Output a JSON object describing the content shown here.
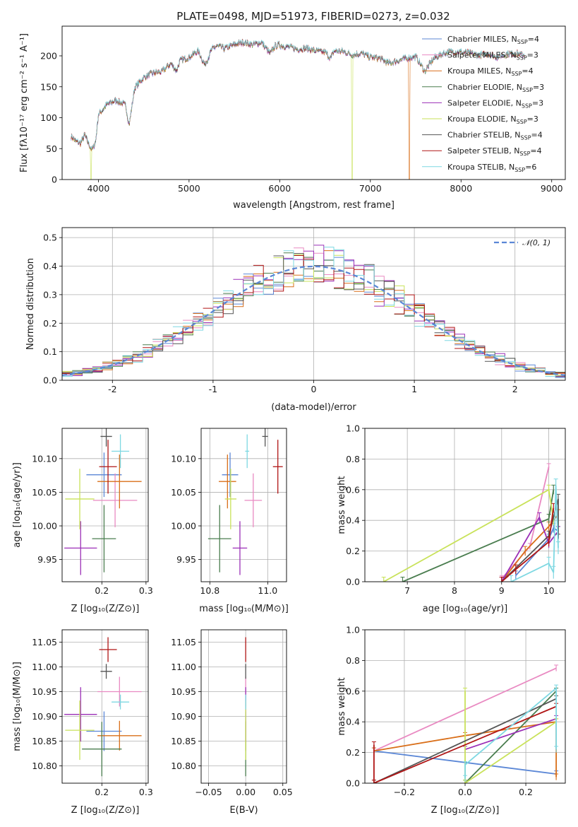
{
  "figure": {
    "title": "PLATE=0498, MJD=51973, FIBERID=0273, z=0.032"
  },
  "colors": {
    "chabrier_miles": "#5b87d6",
    "salpeter_miles": "#e98ac2",
    "kroupa_miles": "#d96f1a",
    "chabrier_elodie": "#4a7d4f",
    "salpeter_elodie": "#9b2fb7",
    "kroupa_elodie": "#c9e25a",
    "chabrier_stelib": "#555555",
    "salpeter_stelib": "#b01515",
    "kroupa_stelib": "#7ed8e2",
    "normal": "#5b87d6"
  },
  "chart_data": [
    {
      "id": "spectrum",
      "type": "line",
      "xlabel": "wavelength [Angstrom, rest frame]",
      "ylabel": "Flux [f_λ10^-17 erg cm^-2 s^-1 A^-1]",
      "xlim": [
        3600,
        9150
      ],
      "ylim": [
        0,
        248
      ],
      "xticks": [
        4000,
        5000,
        6000,
        7000,
        8000,
        9000
      ],
      "yticks": [
        0,
        50,
        100,
        150,
        200
      ],
      "grid": false,
      "legend": "top-right",
      "curve": {
        "x": [
          3700,
          3750,
          3800,
          3850,
          3900,
          3930,
          3970,
          4000,
          4100,
          4200,
          4300,
          4340,
          4400,
          4500,
          4600,
          4700,
          4800,
          4861,
          4900,
          5000,
          5100,
          5175,
          5250,
          5300,
          5400,
          5500,
          5600,
          5700,
          5800,
          5893,
          5950,
          6000,
          6100,
          6200,
          6300,
          6400,
          6500,
          6563,
          6600,
          6700,
          6800,
          6900,
          7000,
          7100,
          7200,
          7300,
          7400,
          7500,
          7600,
          7700,
          7800,
          7900,
          8000,
          8100,
          8200,
          8300,
          8400,
          8500,
          8600,
          8700
        ],
        "y": [
          70,
          62,
          58,
          72,
          55,
          48,
          62,
          105,
          122,
          128,
          120,
          88,
          148,
          165,
          172,
          174,
          188,
          176,
          192,
          198,
          208,
          185,
          210,
          216,
          212,
          218,
          222,
          218,
          222,
          203,
          216,
          218,
          214,
          211,
          212,
          208,
          206,
          196,
          208,
          207,
          202,
          204,
          198,
          196,
          188,
          192,
          196,
          199,
          175,
          196,
          204,
          207,
          206,
          204,
          201,
          203,
          198,
          203,
          204,
          201
        ]
      },
      "series": [
        {
          "name": "Chabrier MILES, N_SSP=4",
          "color_key": "chabrier_miles"
        },
        {
          "name": "Salpeter MILES, N_SSP=3",
          "color_key": "salpeter_miles"
        },
        {
          "name": "Kroupa MILES, N_SSP=4",
          "color_key": "kroupa_miles",
          "dropout_at": 7430
        },
        {
          "name": "Chabrier ELODIE, N_SSP=3",
          "color_key": "chabrier_elodie"
        },
        {
          "name": "Salpeter ELODIE, N_SSP=3",
          "color_key": "salpeter_elodie"
        },
        {
          "name": "Kroupa ELODIE, N_SSP=3",
          "color_key": "kroupa_elodie",
          "dropout_at": 6800,
          "dropout_at_2": 3920
        },
        {
          "name": "Chabrier STELIB, N_SSP=4",
          "color_key": "chabrier_stelib"
        },
        {
          "name": "Salpeter STELIB, N_SSP=4",
          "color_key": "salpeter_stelib"
        },
        {
          "name": "Kroupa STELIB, N_SSP=6",
          "color_key": "kroupa_stelib"
        }
      ]
    },
    {
      "id": "residuals",
      "type": "step",
      "xlabel": "(data-model)/error",
      "ylabel": "Normed distribution",
      "xlim": [
        -2.5,
        2.5
      ],
      "ylim": [
        0,
        0.535
      ],
      "xticks": [
        -2,
        -1,
        0,
        1,
        2
      ],
      "yticks": [
        0.0,
        0.1,
        0.2,
        0.3,
        0.4,
        0.5
      ],
      "grid": true,
      "legend": "top-right",
      "legend_entry": "N(0,1)",
      "bin_width": 0.1,
      "reference": {
        "name": "N(0,1)",
        "type": "gaussian",
        "mean": 0,
        "sigma": 1
      }
    },
    {
      "id": "age_vs_Z",
      "type": "errorbar",
      "xlabel": "Z [log10(Z/Z⊙)]",
      "ylabel": "age [log10(age/yr)]",
      "xlim": [
        0.11,
        0.305
      ],
      "ylim": [
        9.917,
        10.145
      ],
      "xticks": [
        0.2,
        0.3
      ],
      "xtick_labels": [
        "0.2",
        "0.3"
      ],
      "yticks": [
        9.95,
        10.0,
        10.05,
        10.1
      ],
      "grid": true,
      "points": [
        {
          "color_key": "chabrier_miles",
          "x": 0.205,
          "y": 10.076,
          "xerr": 0.04,
          "yerr": 0.033
        },
        {
          "color_key": "salpeter_miles",
          "x": 0.23,
          "y": 10.038,
          "xerr": 0.05,
          "yerr": 0.04
        },
        {
          "color_key": "kroupa_miles",
          "x": 0.24,
          "y": 10.066,
          "xerr": 0.05,
          "yerr": 0.04
        },
        {
          "color_key": "chabrier_elodie",
          "x": 0.205,
          "y": 9.981,
          "xerr": 0.027,
          "yerr": 0.05
        },
        {
          "color_key": "salpeter_elodie",
          "x": 0.152,
          "y": 9.967,
          "xerr": 0.037,
          "yerr": 0.04
        },
        {
          "color_key": "kroupa_elodie",
          "x": 0.15,
          "y": 10.04,
          "xerr": 0.033,
          "yerr": 0.045
        },
        {
          "color_key": "chabrier_stelib",
          "x": 0.21,
          "y": 10.133,
          "xerr": 0.013,
          "yerr": 0.015
        },
        {
          "color_key": "salpeter_stelib",
          "x": 0.214,
          "y": 10.088,
          "xerr": 0.02,
          "yerr": 0.04
        },
        {
          "color_key": "kroupa_stelib",
          "x": 0.242,
          "y": 10.111,
          "xerr": 0.02,
          "yerr": 0.025
        }
      ]
    },
    {
      "id": "age_vs_mass",
      "type": "errorbar",
      "xlabel": "mass [log10(M/M⊙)]",
      "ylabel": "",
      "xlim": [
        10.77,
        11.065
      ],
      "ylim": [
        9.917,
        10.145
      ],
      "xticks": [
        10.8,
        11.0
      ],
      "xtick_labels": [
        "10.8",
        "11.0"
      ],
      "yticks": [
        9.95,
        10.0,
        10.05,
        10.1
      ],
      "grid": true,
      "points": [
        {
          "color_key": "chabrier_miles",
          "x": 10.87,
          "y": 10.076,
          "xerr": 0.028,
          "yerr": 0.033
        },
        {
          "color_key": "salpeter_miles",
          "x": 10.95,
          "y": 10.038,
          "xerr": 0.03,
          "yerr": 0.04
        },
        {
          "color_key": "kroupa_miles",
          "x": 10.861,
          "y": 10.066,
          "xerr": 0.03,
          "yerr": 0.04
        },
        {
          "color_key": "chabrier_elodie",
          "x": 10.834,
          "y": 9.981,
          "xerr": 0.04,
          "yerr": 0.05
        },
        {
          "color_key": "salpeter_elodie",
          "x": 10.904,
          "y": 9.967,
          "xerr": 0.025,
          "yerr": 0.04
        },
        {
          "color_key": "kroupa_elodie",
          "x": 10.872,
          "y": 10.04,
          "xerr": 0.02,
          "yerr": 0.045
        },
        {
          "color_key": "chabrier_stelib",
          "x": 10.991,
          "y": 10.133,
          "xerr": 0.01,
          "yerr": 0.015
        },
        {
          "color_key": "salpeter_stelib",
          "x": 11.035,
          "y": 10.088,
          "xerr": 0.017,
          "yerr": 0.04
        },
        {
          "color_key": "kroupa_stelib",
          "x": 10.929,
          "y": 10.111,
          "xerr": 0.007,
          "yerr": 0.025
        }
      ]
    },
    {
      "id": "weight_vs_age",
      "type": "line",
      "xlabel": "age [log10(age/yr)]",
      "ylabel": "mass weight",
      "xlim": [
        6.1,
        10.35
      ],
      "ylim": [
        0,
        1.0
      ],
      "xticks": [
        7,
        8,
        9,
        10
      ],
      "yticks": [
        0.0,
        0.2,
        0.4,
        0.6,
        0.8,
        1.0
      ],
      "grid": true,
      "series": [
        {
          "color_key": "chabrier_miles",
          "x": [
            9.3,
            10.0,
            10.1,
            10.2
          ],
          "y": [
            0.04,
            0.28,
            0.35,
            0.33
          ],
          "yerr": 0.03
        },
        {
          "color_key": "salpeter_miles",
          "x": [
            9.0,
            9.6,
            10.0
          ],
          "y": [
            0.02,
            0.23,
            0.75
          ],
          "yerr": 0.02
        },
        {
          "color_key": "kroupa_miles",
          "x": [
            9.0,
            9.5,
            10.0,
            10.2
          ],
          "y": [
            0.0,
            0.2,
            0.36,
            0.44
          ],
          "yerr": 0.03
        },
        {
          "color_key": "chabrier_elodie",
          "x": [
            6.9,
            10.0,
            10.1
          ],
          "y": [
            0.0,
            0.41,
            0.6
          ],
          "yerr": 0.03
        },
        {
          "color_key": "salpeter_elodie",
          "x": [
            9.0,
            9.8,
            10.0,
            10.2
          ],
          "y": [
            0.0,
            0.42,
            0.25,
            0.33
          ],
          "yerr": 0.03
        },
        {
          "color_key": "kroupa_elodie",
          "x": [
            6.5,
            10.0,
            10.1
          ],
          "y": [
            0.0,
            0.6,
            0.4
          ],
          "yerr": 0.03
        },
        {
          "color_key": "chabrier_stelib",
          "x": [
            9.0,
            10.0,
            10.2,
            10.2
          ],
          "y": [
            0.0,
            0.3,
            0.54,
            0.28
          ],
          "yerr": 0.03
        },
        {
          "color_key": "salpeter_stelib",
          "x": [
            9.0,
            9.3,
            10.0,
            10.1
          ],
          "y": [
            0.0,
            0.08,
            0.26,
            0.48
          ],
          "yerr": 0.03
        },
        {
          "color_key": "kroupa_stelib",
          "x": [
            9.2,
            10.0,
            10.1,
            10.15,
            10.2
          ],
          "y": [
            0.0,
            0.12,
            0.06,
            0.63,
            0.22
          ],
          "yerr": 0.04
        }
      ]
    },
    {
      "id": "mass_vs_Z",
      "type": "errorbar",
      "xlabel": "Z [log10(Z/Z⊙)]",
      "ylabel": "mass [log10(M/M⊙)]",
      "xlim": [
        0.11,
        0.305
      ],
      "ylim": [
        10.765,
        11.075
      ],
      "xticks": [
        0.2,
        0.3
      ],
      "xtick_labels": [
        "0.2",
        "0.3"
      ],
      "yticks": [
        10.8,
        10.85,
        10.9,
        10.95,
        11.0,
        11.05
      ],
      "grid": true,
      "points": [
        {
          "color_key": "chabrier_miles",
          "x": 0.205,
          "y": 10.87,
          "xerr": 0.04,
          "yerr": 0.04
        },
        {
          "color_key": "salpeter_miles",
          "x": 0.24,
          "y": 10.95,
          "xerr": 0.05,
          "yerr": 0.03
        },
        {
          "color_key": "kroupa_miles",
          "x": 0.24,
          "y": 10.861,
          "xerr": 0.05,
          "yerr": 0.03
        },
        {
          "color_key": "chabrier_elodie",
          "x": 0.2,
          "y": 10.834,
          "xerr": 0.045,
          "yerr": 0.055
        },
        {
          "color_key": "salpeter_elodie",
          "x": 0.152,
          "y": 10.904,
          "xerr": 0.037,
          "yerr": 0.055
        },
        {
          "color_key": "kroupa_elodie",
          "x": 0.15,
          "y": 10.872,
          "xerr": 0.033,
          "yerr": 0.06
        },
        {
          "color_key": "chabrier_stelib",
          "x": 0.21,
          "y": 10.991,
          "xerr": 0.013,
          "yerr": 0.015
        },
        {
          "color_key": "salpeter_stelib",
          "x": 0.214,
          "y": 11.035,
          "xerr": 0.02,
          "yerr": 0.025
        },
        {
          "color_key": "kroupa_stelib",
          "x": 0.242,
          "y": 10.929,
          "xerr": 0.02,
          "yerr": 0.015
        }
      ]
    },
    {
      "id": "mass_vs_EBV",
      "type": "errorbar",
      "xlabel": "E(B-V)",
      "ylabel": "",
      "xlim": [
        -0.06,
        0.055
      ],
      "ylim": [
        10.765,
        11.075
      ],
      "xticks": [
        -0.05,
        0.0,
        0.05
      ],
      "xtick_labels": [
        "−0.05",
        "0.00",
        "0.05"
      ],
      "yticks": [
        10.8,
        10.85,
        10.9,
        10.95,
        11.0,
        11.05
      ],
      "grid": true,
      "points": [
        {
          "color_key": "chabrier_miles",
          "x": 0.0,
          "y": 10.87,
          "xerr": 0.0,
          "yerr": 0.04
        },
        {
          "color_key": "salpeter_miles",
          "x": 0.0,
          "y": 10.95,
          "xerr": 0.0,
          "yerr": 0.03
        },
        {
          "color_key": "kroupa_miles",
          "x": 0.0,
          "y": 10.861,
          "xerr": 0.0,
          "yerr": 0.03
        },
        {
          "color_key": "chabrier_elodie",
          "x": 0.0,
          "y": 10.834,
          "xerr": 0.0,
          "yerr": 0.055
        },
        {
          "color_key": "salpeter_elodie",
          "x": 0.0,
          "y": 10.904,
          "xerr": 0.0,
          "yerr": 0.055
        },
        {
          "color_key": "kroupa_elodie",
          "x": 0.0,
          "y": 10.872,
          "xerr": 0.0,
          "yerr": 0.06
        },
        {
          "color_key": "chabrier_stelib",
          "x": 0.0,
          "y": 10.991,
          "xerr": 0.0,
          "yerr": 0.015
        },
        {
          "color_key": "salpeter_stelib",
          "x": 0.0,
          "y": 11.035,
          "xerr": 0.0,
          "yerr": 0.025
        },
        {
          "color_key": "kroupa_stelib",
          "x": 0.0,
          "y": 10.929,
          "xerr": 0.0,
          "yerr": 0.015
        }
      ]
    },
    {
      "id": "weight_vs_Z",
      "type": "line",
      "xlabel": "Z [log10(Z/Z⊙)]",
      "ylabel": "mass weight",
      "xlim": [
        -0.33,
        0.33
      ],
      "ylim": [
        0,
        1.0
      ],
      "xticks": [
        -0.2,
        0.0,
        0.2
      ],
      "xtick_labels": [
        "−0.2",
        "0.0",
        "0.2"
      ],
      "yticks": [
        0.0,
        0.2,
        0.4,
        0.6,
        0.8,
        1.0
      ],
      "grid": true,
      "series": [
        {
          "color_key": "chabrier_miles",
          "x": [
            -0.3,
            0.3
          ],
          "y": [
            0.21,
            0.06
          ],
          "yerr": 0.02
        },
        {
          "color_key": "salpeter_miles",
          "x": [
            -0.3,
            0.3
          ],
          "y": [
            0.21,
            0.75
          ],
          "yerr": 0.02
        },
        {
          "color_key": "kroupa_miles",
          "x": [
            -0.3,
            0.0,
            0.3,
            0.3
          ],
          "y": [
            0.21,
            0.31,
            0.4,
            0.04
          ],
          "yerr": 0.02
        },
        {
          "color_key": "chabrier_elodie",
          "x": [
            0.0,
            0.3
          ],
          "y": [
            0.0,
            0.6
          ],
          "yerr": 0.02
        },
        {
          "color_key": "salpeter_elodie",
          "x": [
            0.0,
            0.3
          ],
          "y": [
            0.22,
            0.42
          ],
          "yerr": 0.02
        },
        {
          "color_key": "kroupa_elodie",
          "x": [
            0.0,
            0.0,
            0.3
          ],
          "y": [
            0.6,
            0.0,
            0.4
          ],
          "yerr": 0.02
        },
        {
          "color_key": "chabrier_stelib",
          "x": [
            -0.3,
            0.3
          ],
          "y": [
            0.0,
            0.55
          ],
          "yerr": 0.02
        },
        {
          "color_key": "salpeter_stelib",
          "x": [
            -0.3,
            -0.3,
            0.3
          ],
          "y": [
            0.25,
            0.0,
            0.5
          ],
          "yerr": 0.02
        },
        {
          "color_key": "kroupa_stelib",
          "x": [
            0.0,
            0.0,
            0.3,
            0.3
          ],
          "y": [
            0.03,
            0.12,
            0.62,
            0.22
          ],
          "yerr": 0.02
        }
      ]
    }
  ]
}
